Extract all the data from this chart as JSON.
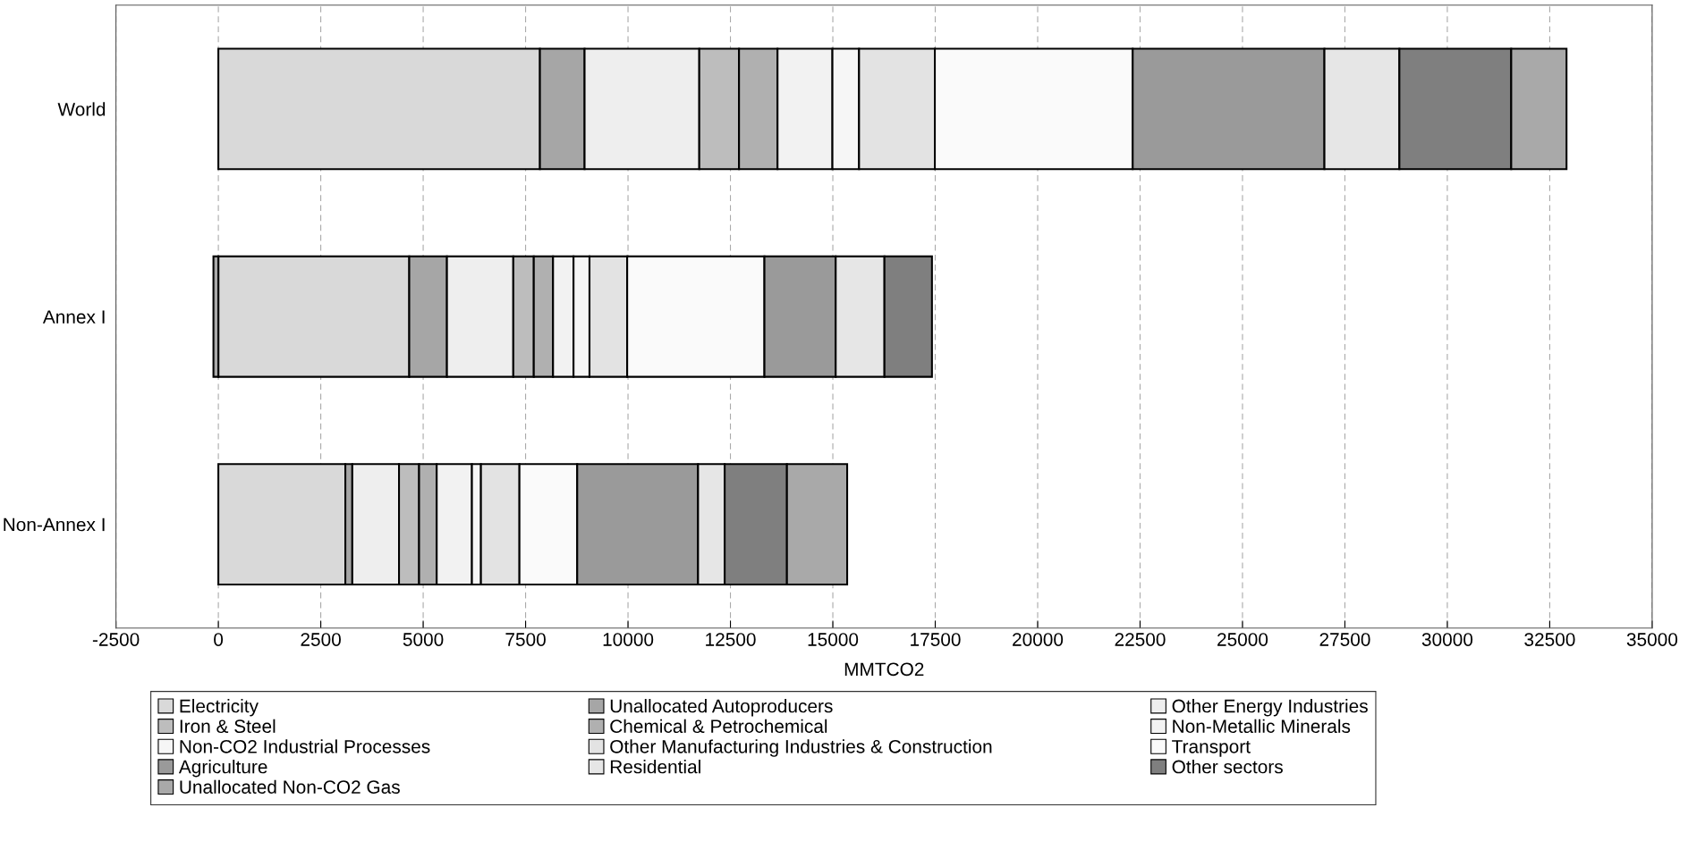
{
  "chart_data": {
    "type": "bar",
    "orientation": "horizontal",
    "stacked": true,
    "xlabel": "MMTCO2",
    "categories": [
      "World",
      "Annex I",
      "Non-Annex I"
    ],
    "xlim": [
      -2500,
      35000
    ],
    "xticks": [
      -2500,
      0,
      2500,
      5000,
      7500,
      10000,
      12500,
      15000,
      17500,
      20000,
      22500,
      25000,
      27500,
      30000,
      32500,
      35000
    ],
    "grid": "x",
    "legend": "bottom",
    "series": [
      {
        "name": "Electricity",
        "color": "#d9d9d9",
        "values": [
          7850,
          4660,
          3100
        ]
      },
      {
        "name": "Unallocated Autoproducers",
        "color": "#a6a6a6",
        "values": [
          1090,
          920,
          170
        ]
      },
      {
        "name": "Other Energy Industries",
        "color": "#eeeeee",
        "values": [
          2800,
          1620,
          1140
        ]
      },
      {
        "name": "Iron & Steel",
        "color": "#bdbdbd",
        "values": [
          970,
          500,
          490
        ]
      },
      {
        "name": "Chemical & Petrochemical",
        "color": "#b0b0b0",
        "values": [
          940,
          470,
          430
        ]
      },
      {
        "name": "Non-Metallic Minerals",
        "color": "#f2f2f2",
        "values": [
          1340,
          500,
          860
        ]
      },
      {
        "name": "Non-CO2 Industrial Processes",
        "color": "#f6f6f6",
        "values": [
          650,
          390,
          220
        ]
      },
      {
        "name": "Other Manufacturing Industries & Construction",
        "color": "#e3e3e3",
        "values": [
          1850,
          920,
          940
        ]
      },
      {
        "name": "Transport",
        "color": "#fafafa",
        "values": [
          4830,
          3350,
          1410
        ]
      },
      {
        "name": "Agriculture",
        "color": "#9a9a9a",
        "values": [
          4680,
          1740,
          2950
        ]
      },
      {
        "name": "Residential",
        "color": "#e6e6e6",
        "values": [
          1830,
          1190,
          650
        ]
      },
      {
        "name": "Other sectors",
        "color": "#7f7f7f",
        "values": [
          2730,
          1160,
          1520
        ]
      },
      {
        "name": "Unallocated Non-CO2 Gas",
        "color": "#a9a9a9",
        "values": [
          1350,
          -120,
          1470
        ]
      }
    ]
  }
}
